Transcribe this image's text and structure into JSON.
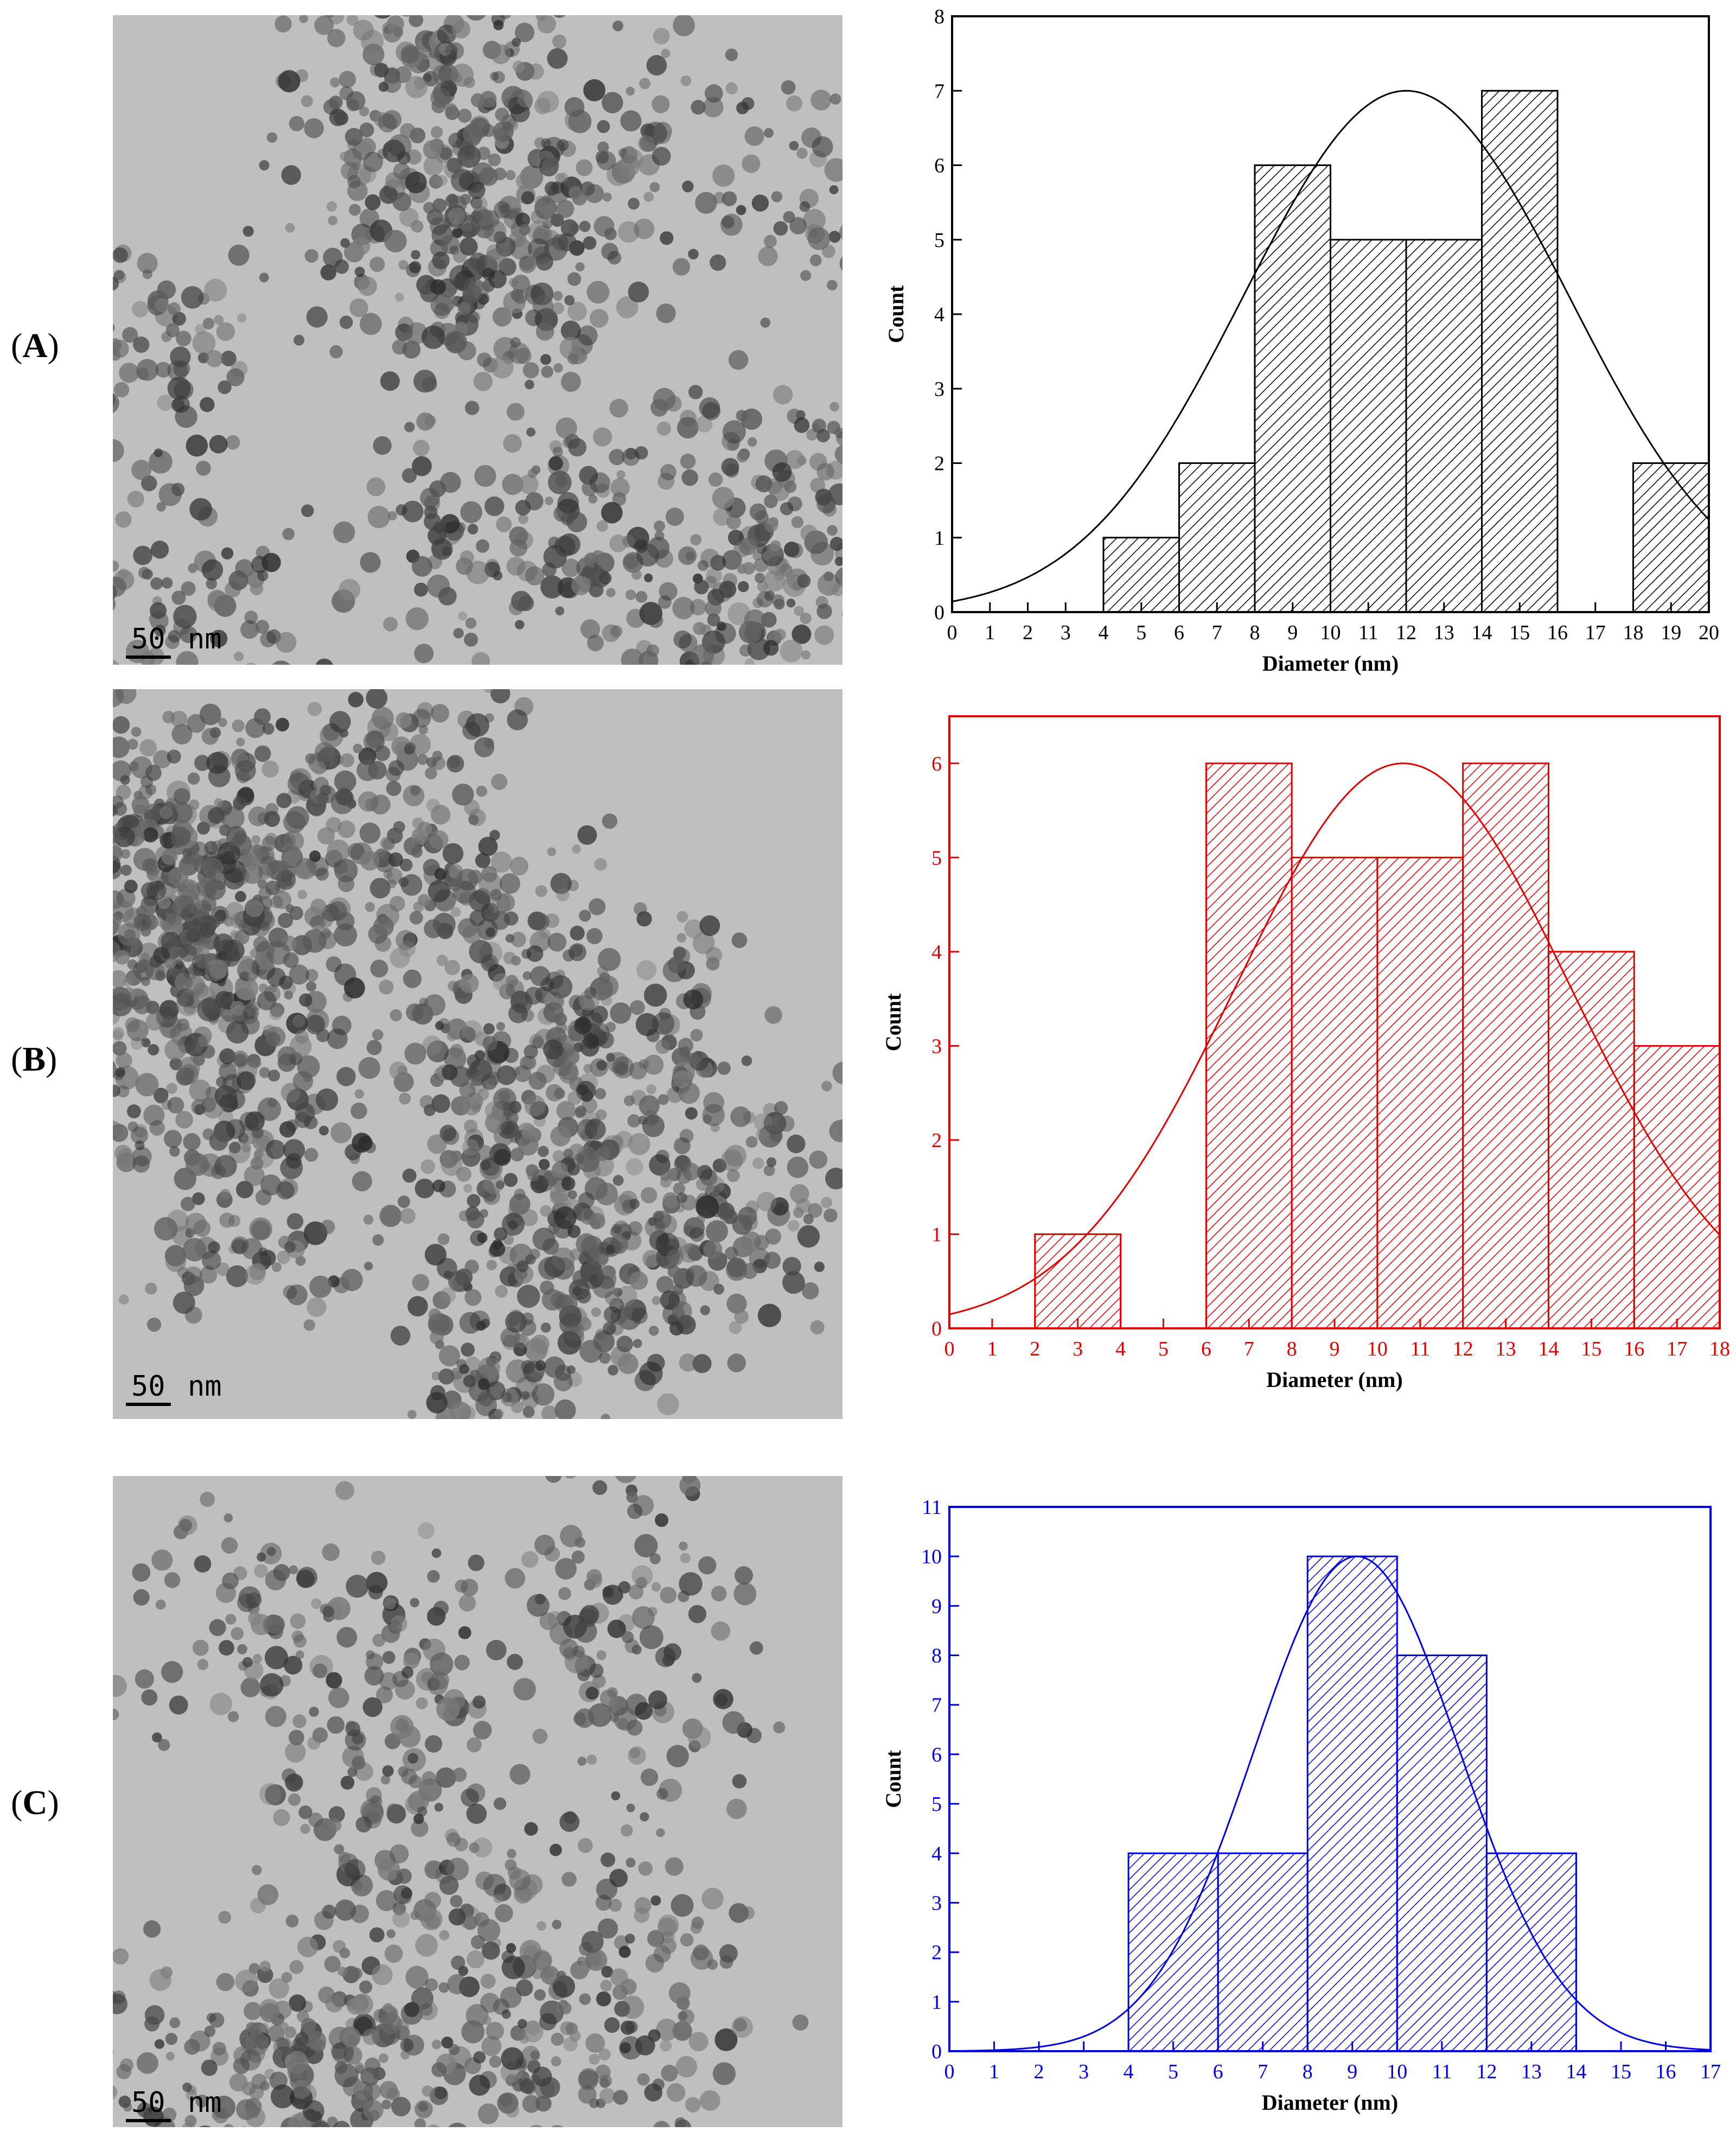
{
  "panels": [
    {
      "label": "A",
      "scale_num": "50",
      "scale_unit": "nm",
      "color": "#000000"
    },
    {
      "label": "B",
      "scale_num": "50",
      "scale_unit": "nm",
      "color": "#e00000"
    },
    {
      "label": "C",
      "scale_num": "50",
      "scale_unit": "nm",
      "color": "#0000e0"
    }
  ],
  "chart_data": [
    {
      "type": "bar",
      "color": "#000000",
      "xlabel": "Diameter (nm)",
      "ylabel": "Count",
      "xlim": [
        0,
        20
      ],
      "ylim": [
        0,
        8
      ],
      "xticks": [
        0,
        1,
        2,
        3,
        4,
        5,
        6,
        7,
        8,
        9,
        10,
        11,
        12,
        13,
        14,
        15,
        16,
        17,
        18,
        19,
        20
      ],
      "yticks": [
        0,
        1,
        2,
        3,
        4,
        5,
        6,
        7,
        8
      ],
      "bins": [
        {
          "x0": 4,
          "x1": 6,
          "count": 1
        },
        {
          "x0": 6,
          "x1": 8,
          "count": 2
        },
        {
          "x0": 8,
          "x1": 10,
          "count": 6
        },
        {
          "x0": 10,
          "x1": 12,
          "count": 5
        },
        {
          "x0": 12,
          "x1": 14,
          "count": 5
        },
        {
          "x0": 14,
          "x1": 16,
          "count": 7
        },
        {
          "x0": 18,
          "x1": 20,
          "count": 2
        }
      ],
      "fit": {
        "type": "gaussian",
        "mean": 12,
        "sigma": 4.3,
        "peak": 7
      }
    },
    {
      "type": "bar",
      "color": "#e00000",
      "xlabel": "Diameter (nm)",
      "ylabel": "Count",
      "xlim": [
        0,
        18
      ],
      "ylim": [
        0,
        6.5
      ],
      "xticks": [
        0,
        1,
        2,
        3,
        4,
        5,
        6,
        7,
        8,
        9,
        10,
        11,
        12,
        13,
        14,
        15,
        16,
        17,
        18
      ],
      "yticks": [
        0,
        1,
        2,
        3,
        4,
        5,
        6
      ],
      "bins": [
        {
          "x0": 2,
          "x1": 4,
          "count": 1
        },
        {
          "x0": 6,
          "x1": 8,
          "count": 6
        },
        {
          "x0": 8,
          "x1": 10,
          "count": 5
        },
        {
          "x0": 10,
          "x1": 12,
          "count": 5
        },
        {
          "x0": 12,
          "x1": 14,
          "count": 6
        },
        {
          "x0": 14,
          "x1": 16,
          "count": 4
        },
        {
          "x0": 16,
          "x1": 18,
          "count": 3
        }
      ],
      "fit": {
        "type": "gaussian",
        "mean": 10.6,
        "sigma": 3.9,
        "peak": 6
      }
    },
    {
      "type": "bar",
      "color": "#0000e0",
      "xlabel": "Diameter (nm)",
      "ylabel": "Count",
      "xlim": [
        0,
        17
      ],
      "ylim": [
        0,
        11
      ],
      "xticks": [
        0,
        1,
        2,
        3,
        4,
        5,
        6,
        7,
        8,
        9,
        10,
        11,
        12,
        13,
        14,
        15,
        16,
        17
      ],
      "yticks": [
        0,
        1,
        2,
        3,
        4,
        5,
        6,
        7,
        8,
        9,
        10,
        11
      ],
      "bins": [
        {
          "x0": 4,
          "x1": 6,
          "count": 4
        },
        {
          "x0": 6,
          "x1": 8,
          "count": 4
        },
        {
          "x0": 8,
          "x1": 10,
          "count": 10
        },
        {
          "x0": 10,
          "x1": 12,
          "count": 8
        },
        {
          "x0": 12,
          "x1": 14,
          "count": 4
        }
      ],
      "fit": {
        "type": "gaussian",
        "mean": 9.1,
        "sigma": 2.3,
        "peak": 10
      }
    }
  ]
}
